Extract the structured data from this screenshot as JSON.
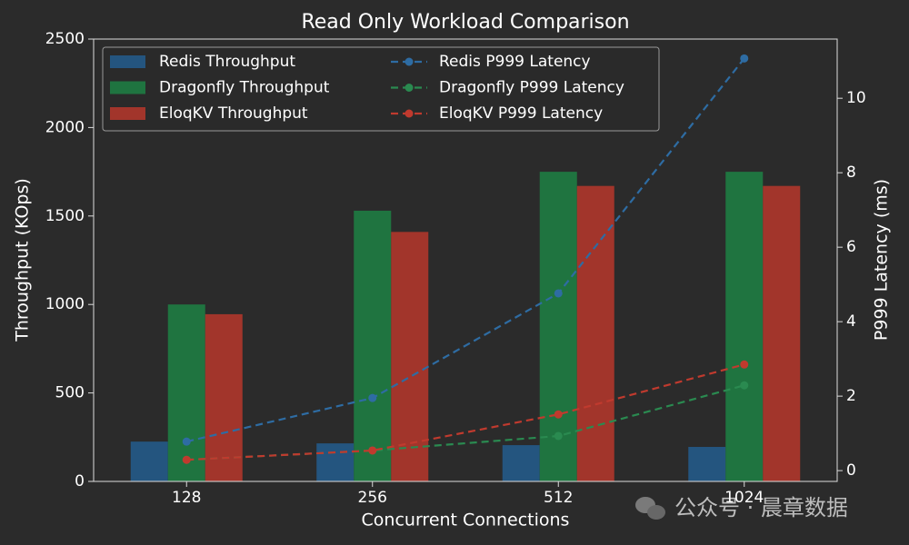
{
  "chart_data": {
    "type": "bar",
    "title": "Read Only Workload Comparison",
    "x_label": "Concurrent Connections",
    "y_label": "Throughput (KOps)",
    "y2_label": "P999 Latency (ms)",
    "categories": [
      "128",
      "256",
      "512",
      "1024"
    ],
    "ylim": [
      0,
      2500
    ],
    "yticks": [
      0,
      500,
      1000,
      1500,
      2000,
      2500
    ],
    "y2lim": [
      -0.29,
      11.59
    ],
    "y2ticks": [
      0,
      2,
      4,
      6,
      8,
      10
    ],
    "legend": "upper left",
    "series": [
      {
        "name": "Redis Throughput",
        "type": "bar",
        "color": "#24557f",
        "values": [
          225,
          215,
          205,
          195
        ]
      },
      {
        "name": "Dragonfly Throughput",
        "type": "bar",
        "color": "#1f7440",
        "values": [
          1000,
          1530,
          1750,
          1750
        ]
      },
      {
        "name": "EloqKV Throughput",
        "type": "bar",
        "color": "#a2352b",
        "values": [
          945,
          1410,
          1670,
          1670
        ]
      },
      {
        "name": "Redis P999 Latency",
        "type": "line",
        "axis": "y2",
        "color": "#2e6ca3",
        "values": [
          0.78,
          1.95,
          4.76,
          11.07
        ]
      },
      {
        "name": "Dragonfly P999 Latency",
        "type": "line",
        "axis": "y2",
        "color": "#2a8a50",
        "values": [
          0.29,
          0.54,
          0.93,
          2.29
        ]
      },
      {
        "name": "EloqKV P999 Latency",
        "type": "line",
        "axis": "y2",
        "color": "#c03a2e",
        "values": [
          0.29,
          0.54,
          1.51,
          2.85
        ]
      }
    ],
    "watermark": "公众号 · 晨章数据"
  }
}
